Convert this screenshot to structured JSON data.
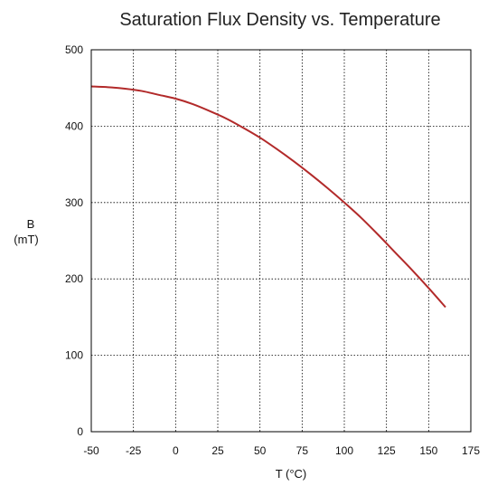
{
  "chart_data": {
    "type": "line",
    "title": "Saturation Flux Density vs. Temperature",
    "xlabel": "T (°C)",
    "ylabel": [
      "B",
      "(mT)"
    ],
    "xlim": [
      -50,
      175
    ],
    "ylim": [
      0,
      500
    ],
    "x_ticks": [
      -50,
      -25,
      0,
      25,
      50,
      75,
      100,
      125,
      150,
      175
    ],
    "y_ticks": [
      0,
      100,
      200,
      300,
      400,
      500
    ],
    "grid": true,
    "series": [
      {
        "color": "#b22a2a",
        "x": [
          -50,
          -40,
          -30,
          -20,
          -10,
          0,
          10,
          20,
          30,
          40,
          50,
          60,
          70,
          80,
          90,
          100,
          110,
          120,
          130,
          140,
          150,
          160
        ],
        "y": [
          452,
          451,
          449,
          446,
          441,
          436,
          429,
          420,
          410,
          398,
          385,
          370,
          354,
          337,
          319,
          300,
          280,
          258,
          235,
          212,
          188,
          163
        ]
      }
    ]
  }
}
